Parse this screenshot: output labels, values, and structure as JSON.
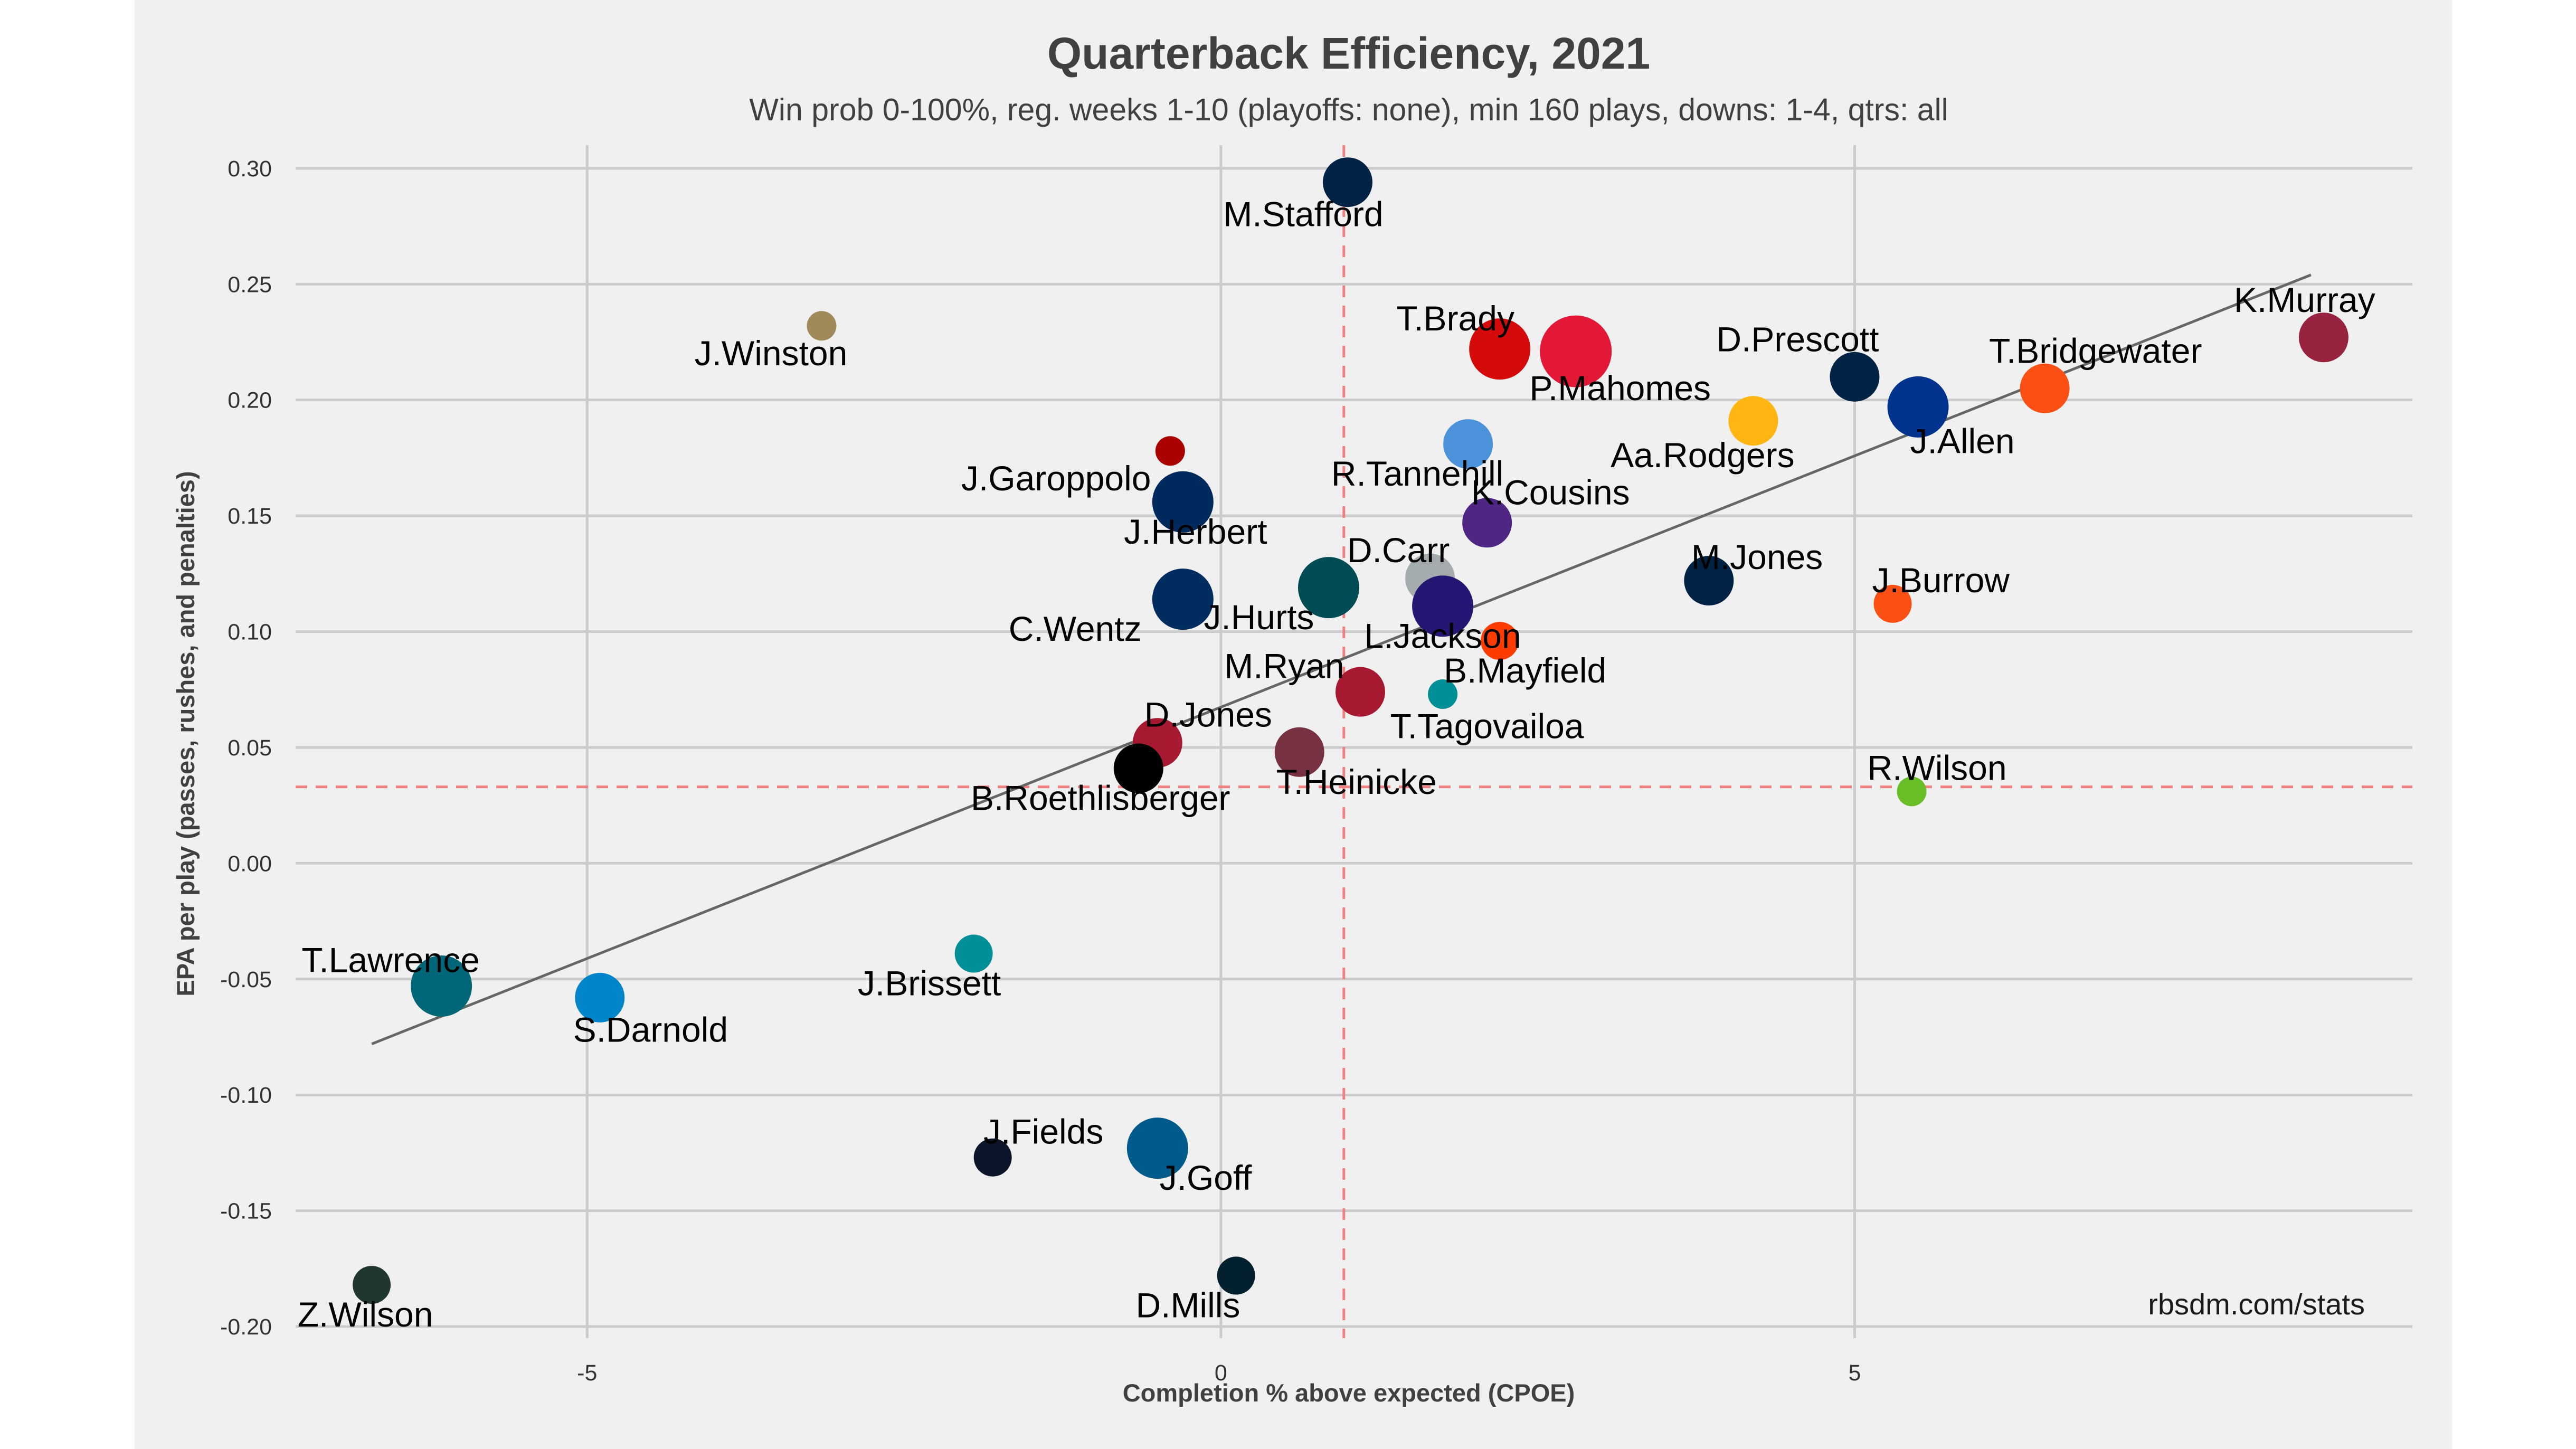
{
  "chart_data": {
    "type": "scatter",
    "title": "Quarterback Efficiency, 2021",
    "subtitle": "Win prob 0-100%, reg. weeks 1-10 (playoffs: none), min 160 plays, downs: 1-4, qtrs: all",
    "xlabel": "Completion % above expected (CPOE)",
    "ylabel": "EPA per play (passes, rushes, and penalties)",
    "caption": "rbsdm.com/stats",
    "xlim": [
      -7.3,
      9.4
    ],
    "ylim": [
      -0.205,
      0.31
    ],
    "xticks": [
      -5,
      0,
      5
    ],
    "xtick_labels": [
      "-5",
      "0",
      "5"
    ],
    "yticks": [
      0.3,
      0.25,
      0.2,
      0.15,
      0.1,
      0.05,
      0.0,
      -0.05,
      -0.1,
      -0.15,
      -0.2
    ],
    "ytick_labels": [
      "0.30",
      "0.25",
      "0.20",
      "0.15",
      "0.10",
      "0.05",
      "0.00",
      "-0.05",
      "-0.10",
      "-0.15",
      "-0.20"
    ],
    "grid": true,
    "mean_lines": {
      "x": 0.97,
      "y": 0.033,
      "color": "#f08080"
    },
    "trend_line": {
      "x": [
        -6.7,
        8.6
      ],
      "y": [
        -0.078,
        0.254
      ],
      "color": "#666666"
    },
    "background": "#f0f0f0",
    "points": [
      {
        "name": "M.Stafford",
        "x": 1.0,
        "y": 0.294,
        "size": 3,
        "color": "#002244",
        "label_dx": -0.35,
        "label_dy": -0.014
      },
      {
        "name": "J.Winston",
        "x": -3.15,
        "y": 0.232,
        "size": 1,
        "color": "#9F8958",
        "label_dx": -0.4,
        "label_dy": -0.012
      },
      {
        "name": "T.Brady",
        "x": 2.2,
        "y": 0.222,
        "size": 4,
        "color": "#D50A0A",
        "label_dx": -0.35,
        "label_dy": 0.013
      },
      {
        "name": "P.Mahomes",
        "x": 2.8,
        "y": 0.221,
        "size": 5,
        "color": "#E31837",
        "label_dx": 0.35,
        "label_dy": -0.016
      },
      {
        "name": "D.Prescott",
        "x": 5.0,
        "y": 0.21,
        "size": 3,
        "color": "#002244",
        "label_dx": -0.45,
        "label_dy": 0.016
      },
      {
        "name": "J.Allen",
        "x": 5.5,
        "y": 0.197,
        "size": 4,
        "color": "#00338D",
        "label_dx": 0.35,
        "label_dy": -0.015
      },
      {
        "name": "T.Bridgewater",
        "x": 6.5,
        "y": 0.205,
        "size": 3,
        "color": "#FB4F14",
        "label_dx": 0.4,
        "label_dy": 0.016
      },
      {
        "name": "K.Murray",
        "x": 8.7,
        "y": 0.227,
        "size": 3,
        "color": "#97233F",
        "label_dx": -0.15,
        "label_dy": 0.016
      },
      {
        "name": "Aa.Rodgers",
        "x": 4.2,
        "y": 0.191,
        "size": 3,
        "color": "#FFB612",
        "label_dx": -0.4,
        "label_dy": -0.015
      },
      {
        "name": "J.Garoppolo",
        "x": -0.4,
        "y": 0.178,
        "size": 1,
        "color": "#AA0000",
        "label_dx": -0.9,
        "label_dy": -0.012
      },
      {
        "name": "J.Herbert",
        "x": -0.3,
        "y": 0.156,
        "size": 4,
        "color": "#002A5E",
        "label_dx": 0.1,
        "label_dy": -0.013
      },
      {
        "name": "R.Tannehill",
        "x": 1.95,
        "y": 0.181,
        "size": 3,
        "color": "#4B92DB",
        "label_dx": -0.4,
        "label_dy": -0.013
      },
      {
        "name": "K.Cousins",
        "x": 2.1,
        "y": 0.147,
        "size": 3,
        "color": "#4F2683",
        "label_dx": 0.5,
        "label_dy": 0.013
      },
      {
        "name": "D.Carr",
        "x": 1.65,
        "y": 0.123,
        "size": 3,
        "color": "#A5ACAF",
        "label_dx": -0.25,
        "label_dy": 0.012
      },
      {
        "name": "J.Hurts",
        "x": 0.85,
        "y": 0.119,
        "size": 4,
        "color": "#004C54",
        "label_dx": -0.55,
        "label_dy": -0.013
      },
      {
        "name": "L.Jackson",
        "x": 1.75,
        "y": 0.111,
        "size": 4,
        "color": "#241773",
        "label_dx": 0.0,
        "label_dy": -0.013
      },
      {
        "name": "C.Wentz",
        "x": -0.3,
        "y": 0.114,
        "size": 4,
        "color": "#002C5F",
        "label_dx": -0.85,
        "label_dy": -0.013
      },
      {
        "name": "M.Jones",
        "x": 3.85,
        "y": 0.122,
        "size": 3,
        "color": "#002244",
        "label_dx": 0.38,
        "label_dy": 0.01
      },
      {
        "name": "J.Burrow",
        "x": 5.3,
        "y": 0.112,
        "size": 2,
        "color": "#FB4F14",
        "label_dx": 0.38,
        "label_dy": 0.01
      },
      {
        "name": "B.Mayfield",
        "x": 2.2,
        "y": 0.096,
        "size": 2,
        "color": "#FF3C00",
        "label_dx": 0.2,
        "label_dy": -0.013
      },
      {
        "name": "M.Ryan",
        "x": 1.1,
        "y": 0.074,
        "size": 3,
        "color": "#A71930",
        "label_dx": -0.6,
        "label_dy": 0.011
      },
      {
        "name": "T.Tagovailoa",
        "x": 1.75,
        "y": 0.073,
        "size": 1,
        "color": "#008E97",
        "label_dx": 0.35,
        "label_dy": -0.014
      },
      {
        "name": "D.Jones",
        "x": -0.5,
        "y": 0.052,
        "size": 3,
        "color": "#A71930",
        "label_dx": 0.4,
        "label_dy": 0.012
      },
      {
        "name": "B.Roethlisberger",
        "x": -0.65,
        "y": 0.041,
        "size": 3,
        "color": "#000000",
        "label_dx": -0.3,
        "label_dy": -0.013
      },
      {
        "name": "T.Heinicke",
        "x": 0.62,
        "y": 0.048,
        "size": 3,
        "color": "#773141",
        "label_dx": 0.45,
        "label_dy": -0.013
      },
      {
        "name": "R.Wilson",
        "x": 5.45,
        "y": 0.031,
        "size": 1,
        "color": "#69BE28",
        "label_dx": 0.2,
        "label_dy": 0.01
      },
      {
        "name": "T.Lawrence",
        "x": -6.15,
        "y": -0.053,
        "size": 4,
        "color": "#006778",
        "label_dx": -0.4,
        "label_dy": 0.011
      },
      {
        "name": "S.Darnold",
        "x": -4.9,
        "y": -0.058,
        "size": 3,
        "color": "#0085CA",
        "label_dx": 0.4,
        "label_dy": -0.014
      },
      {
        "name": "J.Brissett",
        "x": -1.95,
        "y": -0.039,
        "size": 2,
        "color": "#008E97",
        "label_dx": -0.35,
        "label_dy": -0.013
      },
      {
        "name": "J.Fields",
        "x": -1.8,
        "y": -0.127,
        "size": 2,
        "color": "#0B162A",
        "label_dx": 0.4,
        "label_dy": 0.011
      },
      {
        "name": "J.Goff",
        "x": -0.5,
        "y": -0.123,
        "size": 4,
        "color": "#005A8B",
        "label_dx": 0.38,
        "label_dy": -0.013
      },
      {
        "name": "D.Mills",
        "x": 0.12,
        "y": -0.178,
        "size": 2,
        "color": "#03202F",
        "label_dx": -0.38,
        "label_dy": -0.013
      },
      {
        "name": "Z.Wilson",
        "x": -6.7,
        "y": -0.182,
        "size": 2,
        "color": "#203731",
        "label_dx": -0.05,
        "label_dy": -0.013
      }
    ]
  }
}
